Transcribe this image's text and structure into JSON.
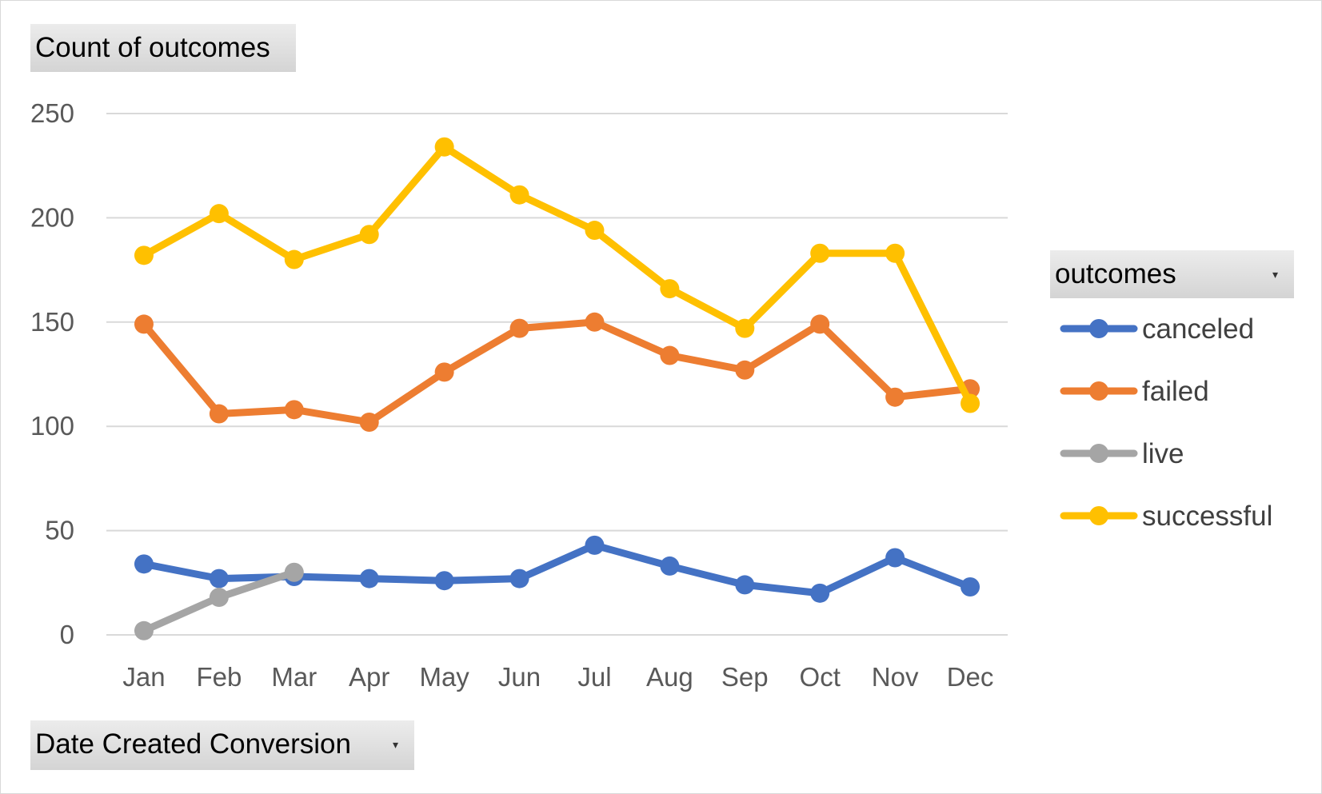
{
  "pivot": {
    "value_field": "Count of outcomes",
    "category_field": "Date Created Conversion",
    "legend_field": "outcomes"
  },
  "chart_data": {
    "type": "line",
    "categories": [
      "Jan",
      "Feb",
      "Mar",
      "Apr",
      "May",
      "Jun",
      "Jul",
      "Aug",
      "Sep",
      "Oct",
      "Nov",
      "Dec"
    ],
    "series": [
      {
        "name": "canceled",
        "color": "#4472C4",
        "values": [
          34,
          27,
          28,
          27,
          26,
          27,
          43,
          33,
          24,
          20,
          37,
          23
        ]
      },
      {
        "name": "failed",
        "color": "#ED7D31",
        "values": [
          149,
          106,
          108,
          102,
          126,
          147,
          150,
          134,
          127,
          149,
          114,
          118
        ]
      },
      {
        "name": "live",
        "color": "#A5A5A5",
        "values": [
          2,
          18,
          30,
          null,
          null,
          null,
          null,
          null,
          null,
          null,
          null,
          null
        ]
      },
      {
        "name": "successful",
        "color": "#FFC000",
        "values": [
          182,
          202,
          180,
          192,
          234,
          211,
          194,
          166,
          147,
          183,
          183,
          111
        ]
      }
    ],
    "ylim": [
      0,
      250
    ],
    "y_ticks": [
      0,
      50,
      100,
      150,
      200,
      250
    ],
    "grid": true,
    "legend_position": "right",
    "title": "",
    "xlabel": "",
    "ylabel": ""
  }
}
